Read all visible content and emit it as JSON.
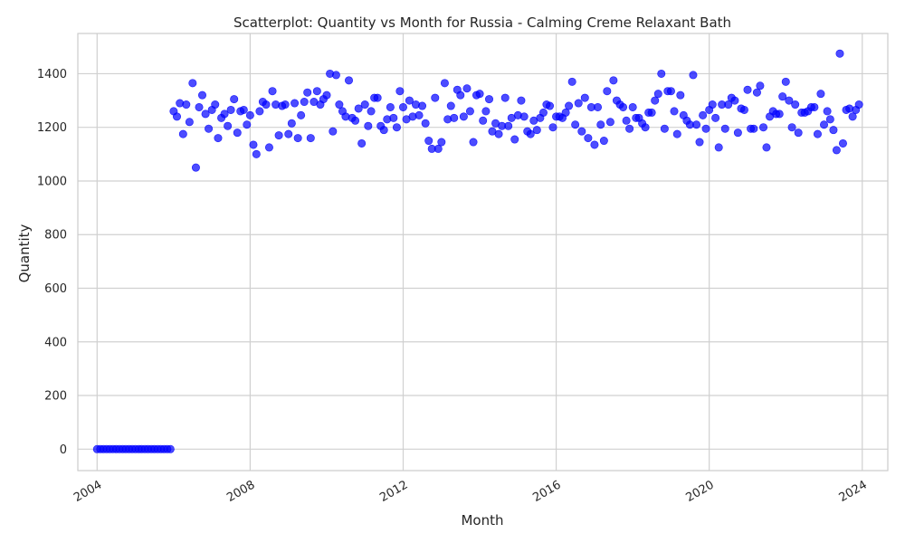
{
  "chart_data": {
    "type": "scatter",
    "title": "Scatterplot: Quantity vs Month for Russia - Calming Creme Relaxant Bath",
    "xlabel": "Month",
    "ylabel": "Quantity",
    "x_axis_type": "date",
    "x_range": [
      "2003-07-01",
      "2024-09-01"
    ],
    "ylim": [
      -80,
      1550
    ],
    "x_ticks": [
      "2004",
      "2008",
      "2012",
      "2016",
      "2020",
      "2024"
    ],
    "y_ticks": [
      "0",
      "200",
      "400",
      "600",
      "800",
      "1000",
      "1200",
      "1400"
    ],
    "grid": true,
    "legend": "none",
    "marker_color": "#0000ff",
    "series": [
      {
        "start_month": "2004-01",
        "frequency": "monthly",
        "values": [
          0,
          0,
          0,
          0,
          0,
          0,
          0,
          0,
          0,
          0,
          0,
          0,
          0,
          0,
          0,
          0,
          0,
          0,
          0,
          0,
          0,
          0,
          0,
          0,
          1260,
          1240,
          1290,
          1175,
          1285,
          1220,
          1365,
          1050,
          1275,
          1320,
          1250,
          1195,
          1265,
          1285,
          1160,
          1235,
          1250,
          1205,
          1265,
          1305,
          1180,
          1260,
          1265,
          1210,
          1245,
          1135,
          1100,
          1260,
          1295,
          1285,
          1125,
          1335,
          1285,
          1170,
          1280,
          1285,
          1175,
          1215,
          1290,
          1160,
          1245,
          1295,
          1330,
          1160,
          1295,
          1335,
          1285,
          1305,
          1320,
          1400,
          1185,
          1395,
          1285,
          1260,
          1240,
          1375,
          1235,
          1225,
          1270,
          1140,
          1285,
          1205,
          1260,
          1310,
          1310,
          1205,
          1190,
          1230,
          1275,
          1235,
          1200,
          1335,
          1275,
          1230,
          1300,
          1240,
          1285,
          1245,
          1280,
          1215,
          1150,
          1120,
          1310,
          1120,
          1145,
          1365,
          1230,
          1280,
          1235,
          1340,
          1320,
          1240,
          1345,
          1260,
          1145,
          1320,
          1325,
          1225,
          1260,
          1305,
          1185,
          1215,
          1175,
          1205,
          1310,
          1205,
          1235,
          1155,
          1245,
          1300,
          1240,
          1185,
          1175,
          1225,
          1190,
          1235,
          1255,
          1285,
          1280,
          1200,
          1240,
          1240,
          1235,
          1255,
          1280,
          1370,
          1210,
          1290,
          1185,
          1310,
          1160,
          1275,
          1135,
          1275,
          1210,
          1150,
          1335,
          1220,
          1375,
          1300,
          1285,
          1275,
          1225,
          1195,
          1275,
          1235,
          1235,
          1215,
          1200,
          1255,
          1255,
          1300,
          1325,
          1400,
          1195,
          1335,
          1335,
          1260,
          1175,
          1320,
          1245,
          1225,
          1210,
          1395,
          1210,
          1145,
          1245,
          1195,
          1265,
          1285,
          1235,
          1125,
          1285,
          1195,
          1285,
          1310,
          1300,
          1180,
          1270,
          1265,
          1340,
          1195,
          1195,
          1330,
          1355,
          1200,
          1125,
          1240,
          1260,
          1250,
          1250,
          1315,
          1370,
          1300,
          1200,
          1285,
          1180,
          1255,
          1255,
          1260,
          1275,
          1275,
          1175,
          1325,
          1210,
          1260,
          1230,
          1190,
          1115,
          1475,
          1140,
          1265,
          1270,
          1240,
          1265,
          1285
        ]
      }
    ]
  }
}
